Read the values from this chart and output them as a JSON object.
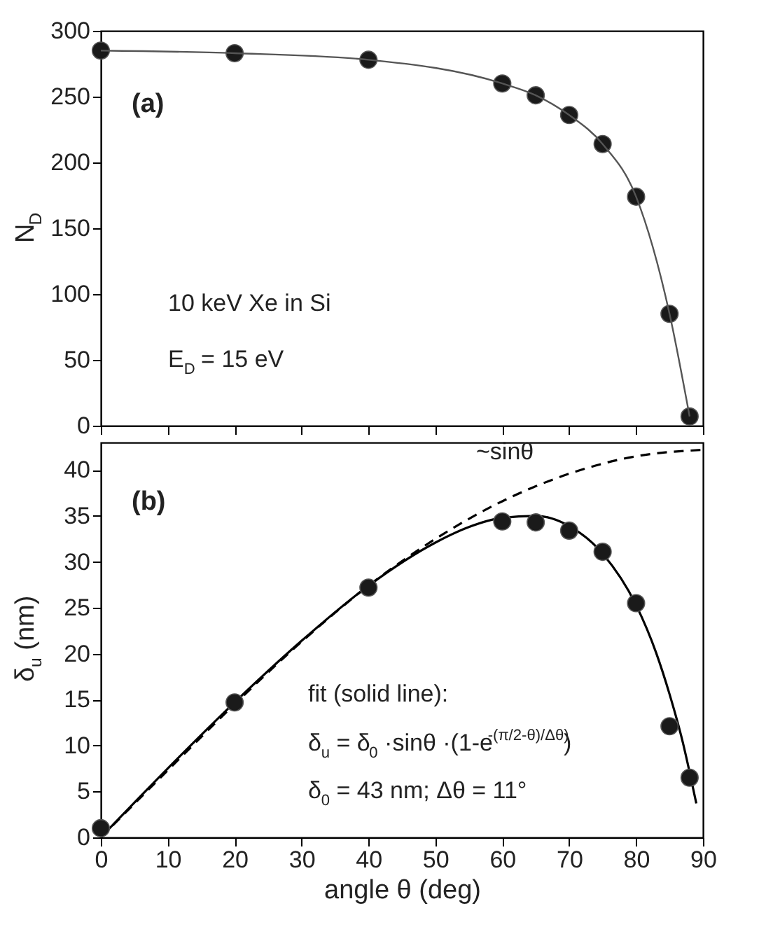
{
  "chart_data": [
    {
      "type": "scatter",
      "ylabel": "N$_{D}$",
      "xlim": [
        0,
        90
      ],
      "xticks": [
        0,
        10,
        20,
        30,
        40,
        50,
        60,
        70,
        80,
        90
      ],
      "ylim": [
        0,
        300
      ],
      "yticks": [
        0,
        50,
        100,
        150,
        200,
        250,
        300
      ],
      "tick_labels": "y",
      "grid": false,
      "x": [
        0,
        20,
        40,
        60,
        65,
        70,
        75,
        80,
        85,
        88
      ],
      "annotations": [
        "(a)",
        "10 keV Xe in Si",
        "E$_{D}$ = 15 eV"
      ],
      "series": [
        {
          "color": "#1a1a1a",
          "marker": "circle",
          "values": [
            285,
            283,
            278,
            260,
            251,
            236,
            214,
            174,
            85,
            7
          ]
        },
        {
          "type": "line",
          "color": "#555555",
          "marker": "none",
          "line_style": "solid",
          "x": [
            0,
            20,
            40,
            60,
            65,
            70,
            75,
            80,
            85,
            88
          ],
          "values": [
            285,
            283,
            278,
            260,
            251,
            236,
            214,
            174,
            85,
            7
          ]
        }
      ]
    },
    {
      "type": "scatter",
      "xlabel": "angle θ (deg)",
      "ylabel": "δ$_{u}$ (nm)",
      "xlim": [
        0,
        90
      ],
      "xticks": [
        0,
        10,
        20,
        30,
        40,
        50,
        60,
        70,
        80,
        90
      ],
      "ylim": [
        0,
        43
      ],
      "yticks": [
        0,
        5,
        10,
        15,
        20,
        25,
        30,
        35,
        40
      ],
      "grid": false,
      "x": [
        0,
        20,
        40,
        60,
        65,
        70,
        75,
        80,
        85,
        88
      ],
      "annotations": [
        "(b)",
        "fit (solid line):",
        "δ$_{u}$ = δ$_{0}$ ·sinθ ·(1-e$^{-(π/2-θ)/Δθ)}$)",
        "δ$_{0}$ = 43 nm; Δθ = 11°",
        "~sinθ"
      ],
      "series": [
        {
          "type": "line",
          "color": "#000000",
          "marker": "none",
          "line_style": "dashed",
          "x": [
            0,
            10,
            20,
            30,
            40,
            50,
            60,
            70,
            80,
            90
          ],
          "values": [
            0,
            7.3,
            14.5,
            21.3,
            27.4,
            32.5,
            36.6,
            39.6,
            41.5,
            42.2
          ]
        },
        {
          "type": "line",
          "color": "#000000",
          "marker": "none",
          "line_style": "solid",
          "x": [
            0,
            10,
            20,
            30,
            40,
            50,
            55,
            60,
            65,
            70,
            75,
            80,
            83,
            85,
            87,
            88,
            89
          ],
          "values": [
            0,
            7.5,
            14.7,
            21.4,
            27.4,
            32.1,
            33.8,
            34.8,
            35.0,
            33.9,
            30.9,
            25.3,
            20.1,
            15.6,
            10.3,
            7.1,
            3.7
          ]
        },
        {
          "color": "#1a1a1a",
          "marker": "circle",
          "values": [
            1,
            14.7,
            27.2,
            34.4,
            34.3,
            33.4,
            31.1,
            25.5,
            12.1,
            6.5
          ]
        }
      ]
    }
  ]
}
